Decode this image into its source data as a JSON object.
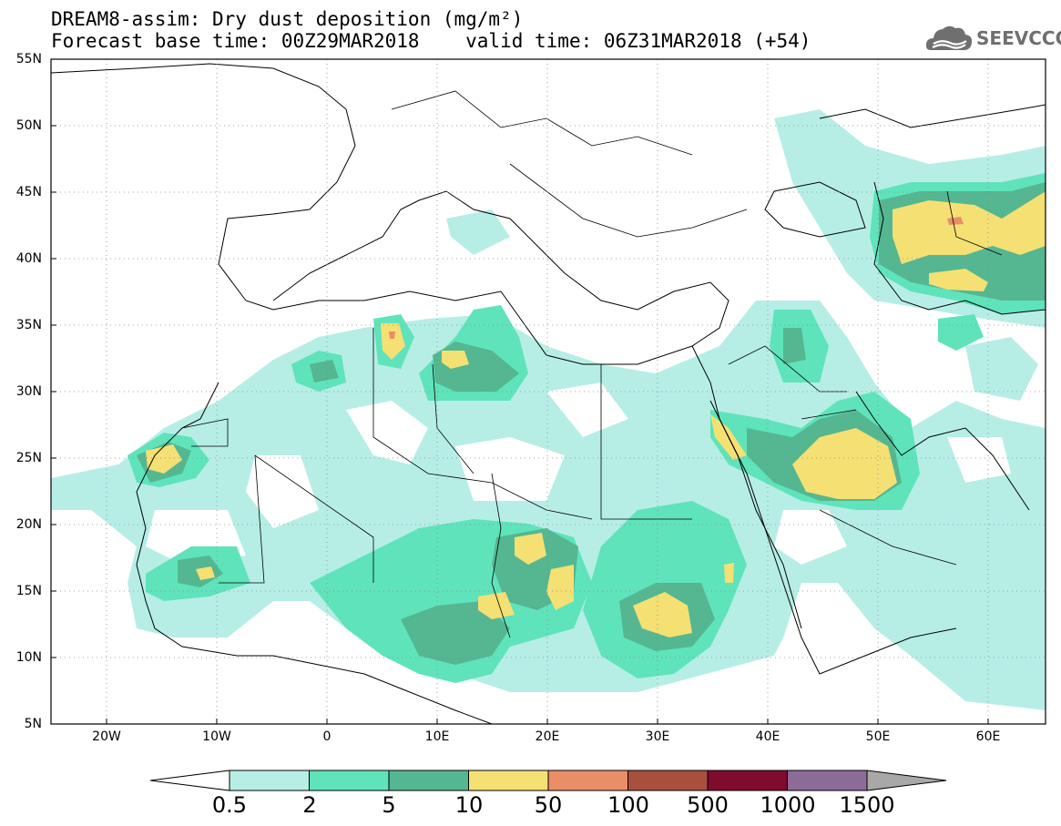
{
  "title": {
    "line1": "DREAM8-assim: Dry dust deposition (mg/m²)",
    "line2": "Forecast base time: 00Z29MAR2018    valid time: 06Z31MAR2018 (+54)"
  },
  "logo": {
    "icon": "cloud-logo-icon",
    "text": "SEEVCCC"
  },
  "map": {
    "lat_labels": [
      "55N",
      "50N",
      "45N",
      "40N",
      "35N",
      "30N",
      "25N",
      "20N",
      "15N",
      "10N",
      "5N"
    ],
    "lon_labels": [
      "20W",
      "10W",
      "0",
      "10E",
      "20E",
      "30E",
      "40E",
      "50E",
      "60E"
    ],
    "lat_range": [
      5,
      55
    ],
    "lon_range": [
      -25,
      65
    ],
    "gridlines": "dotted"
  },
  "colorbar": {
    "labels": [
      "0.5",
      "2",
      "5",
      "10",
      "50",
      "100",
      "500",
      "1000",
      "1500"
    ],
    "colors": [
      "#b6eee6",
      "#5fe3bb",
      "#54b791",
      "#f5e073",
      "#ea8e69",
      "#a94f3e",
      "#7f0b2d",
      "#8c6b99",
      "#a8a8a8"
    ],
    "under_color": "#ffffff",
    "over_color": "#a8a8a8"
  }
}
